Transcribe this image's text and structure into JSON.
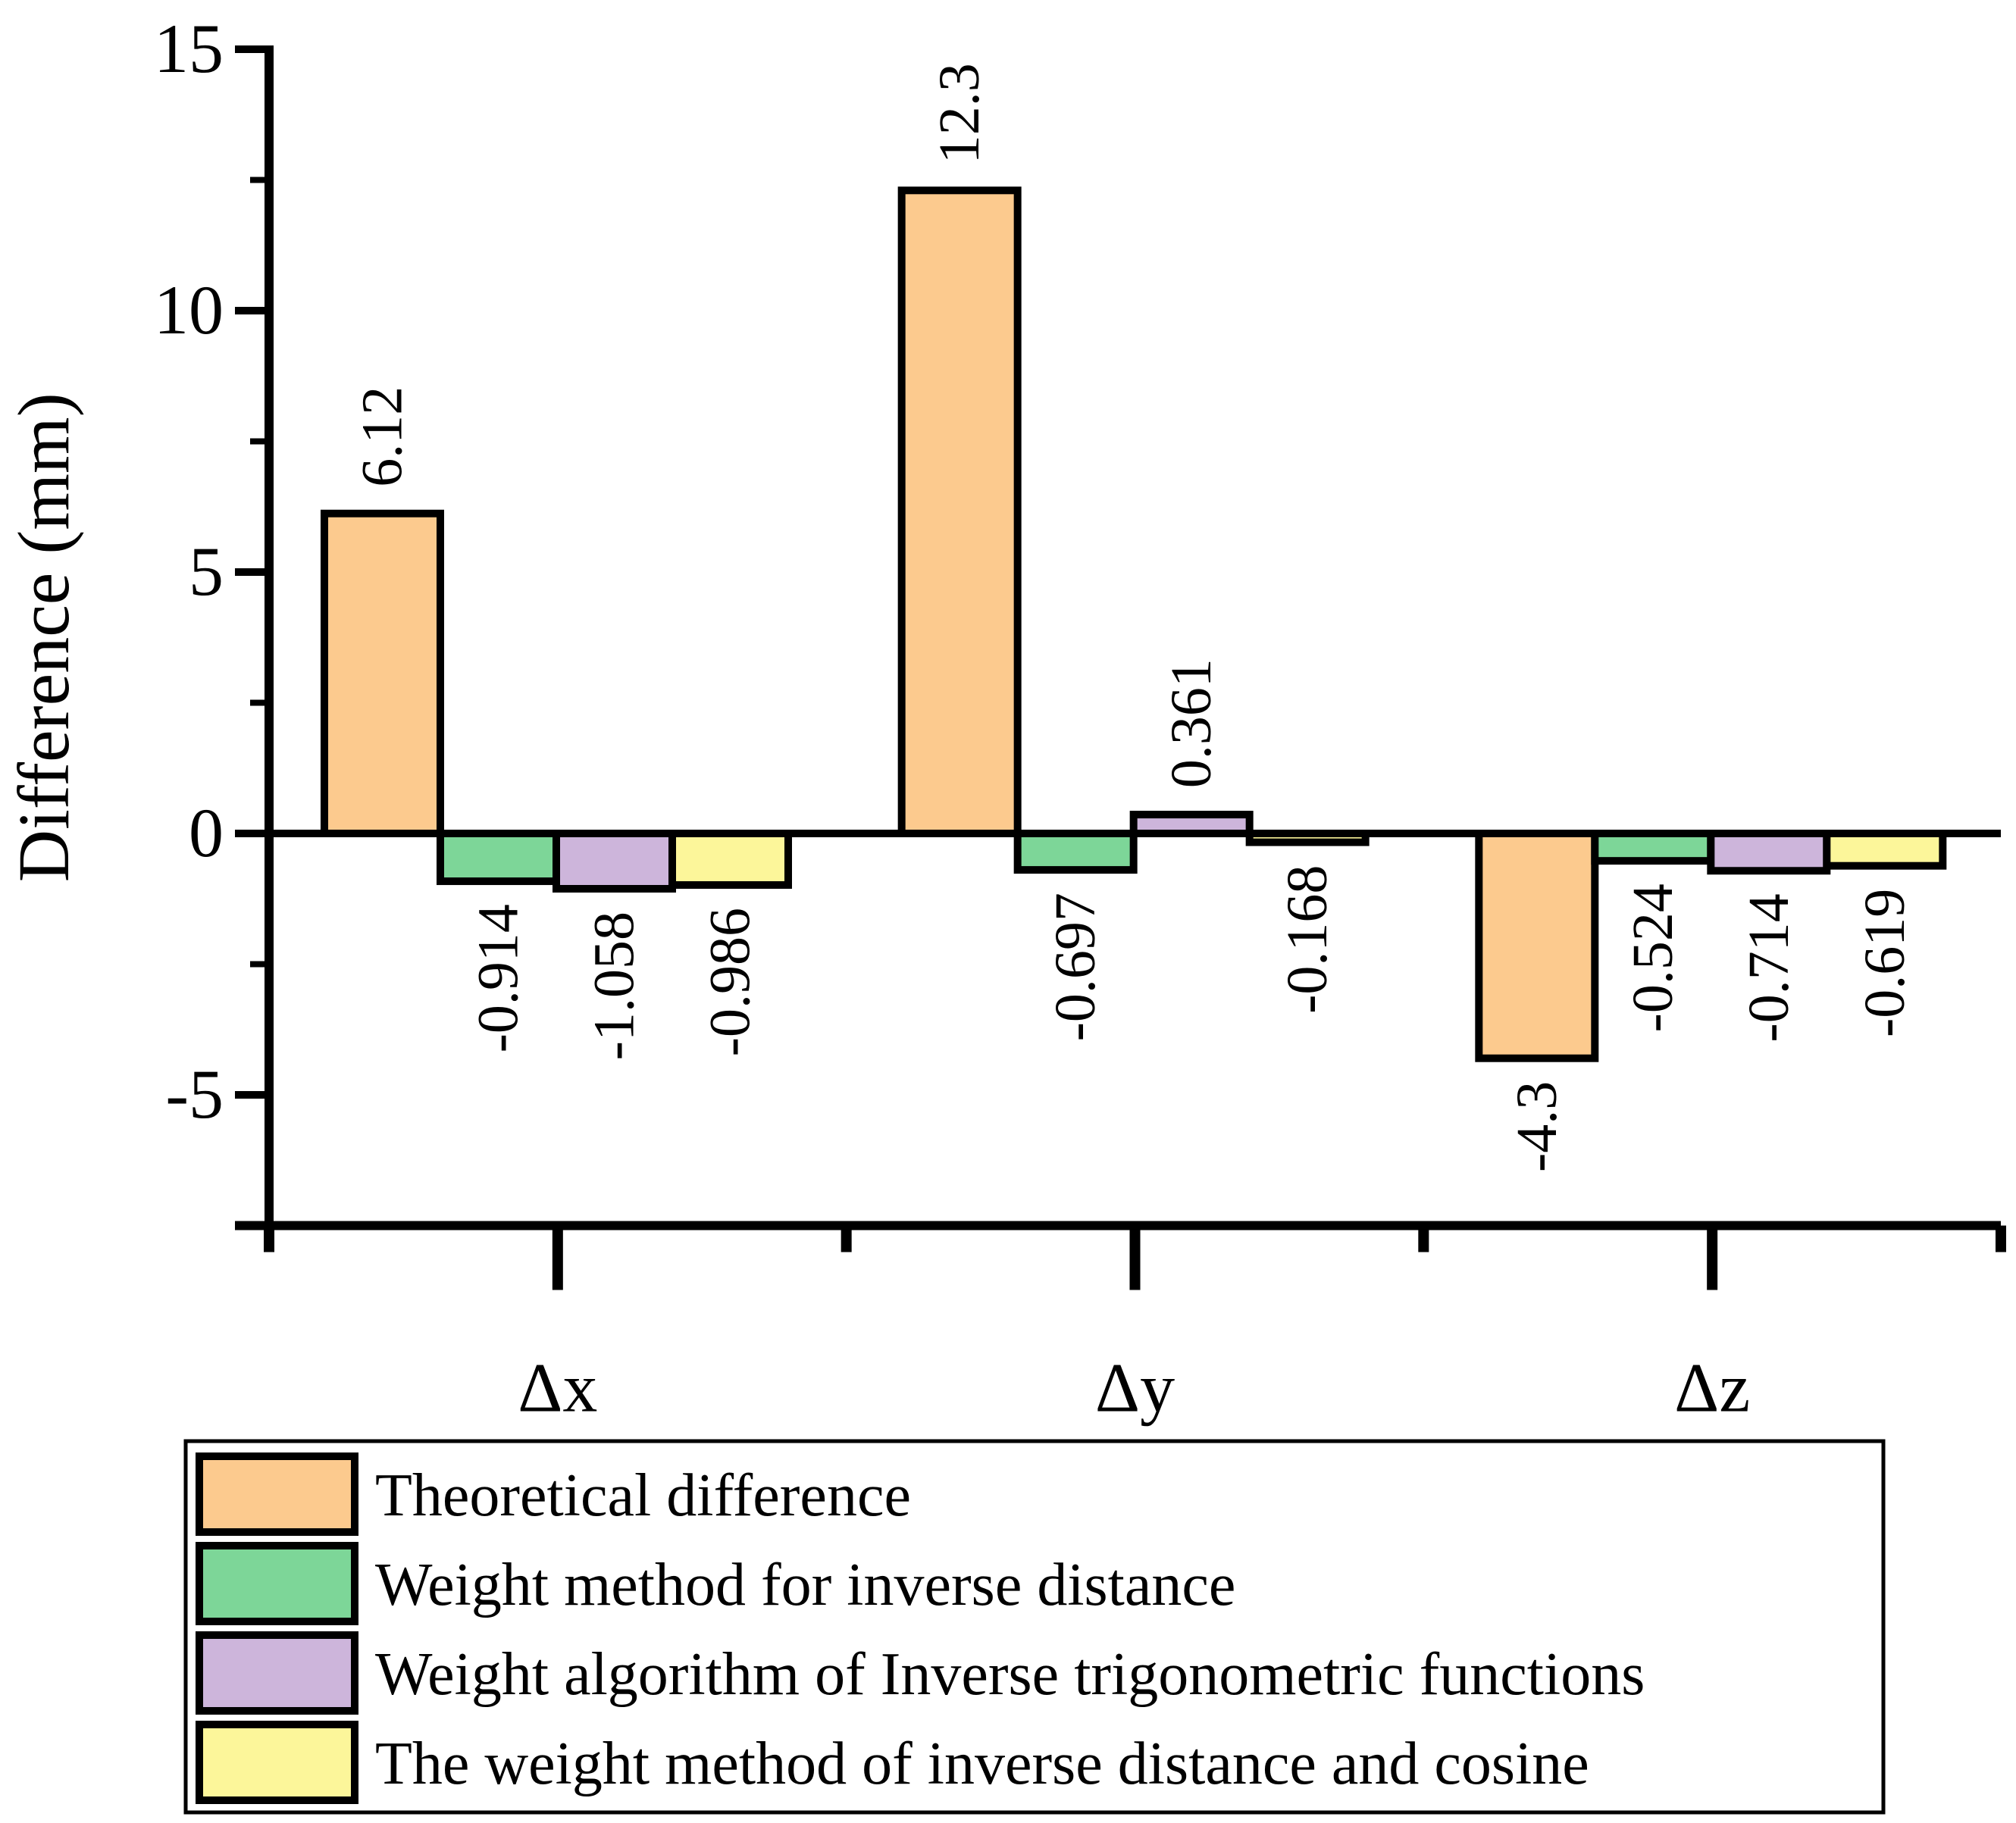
{
  "chart_data": {
    "type": "bar",
    "title": "",
    "xlabel": "",
    "ylabel": "Difference (mm)",
    "ylim": [
      -7.5,
      15
    ],
    "yticks": [
      -5,
      0,
      5,
      10,
      15
    ],
    "ytick_labels": [
      "-5",
      "0",
      "5",
      "10",
      "15"
    ],
    "grid": false,
    "legend_position": "bottom",
    "categories": [
      "Δx",
      "Δy",
      "Δz"
    ],
    "series": [
      {
        "name": "Theoretical difference",
        "color": "#FCCA8E",
        "values": [
          6.12,
          12.3,
          -4.3
        ],
        "labels": [
          "6.12",
          "12.3",
          "-4.3"
        ]
      },
      {
        "name": "Weight method for inverse distance",
        "color": "#7DD698",
        "values": [
          -0.914,
          -0.697,
          -0.524
        ],
        "labels": [
          "-0.914",
          "-0.697",
          "-0.524"
        ]
      },
      {
        "name": "Weight algorithm of Inverse trigonometric functions",
        "color": "#CDB5DB",
        "values": [
          -1.058,
          0.361,
          -0.714
        ],
        "labels": [
          "-1.058",
          "0.361",
          "-0.714"
        ]
      },
      {
        "name": "The weight method of inverse distance and cosine",
        "color": "#FCF69A",
        "values": [
          -0.986,
          -0.168,
          -0.619
        ],
        "labels": [
          "-0.986",
          "-0.168",
          "-0.619"
        ]
      }
    ]
  }
}
